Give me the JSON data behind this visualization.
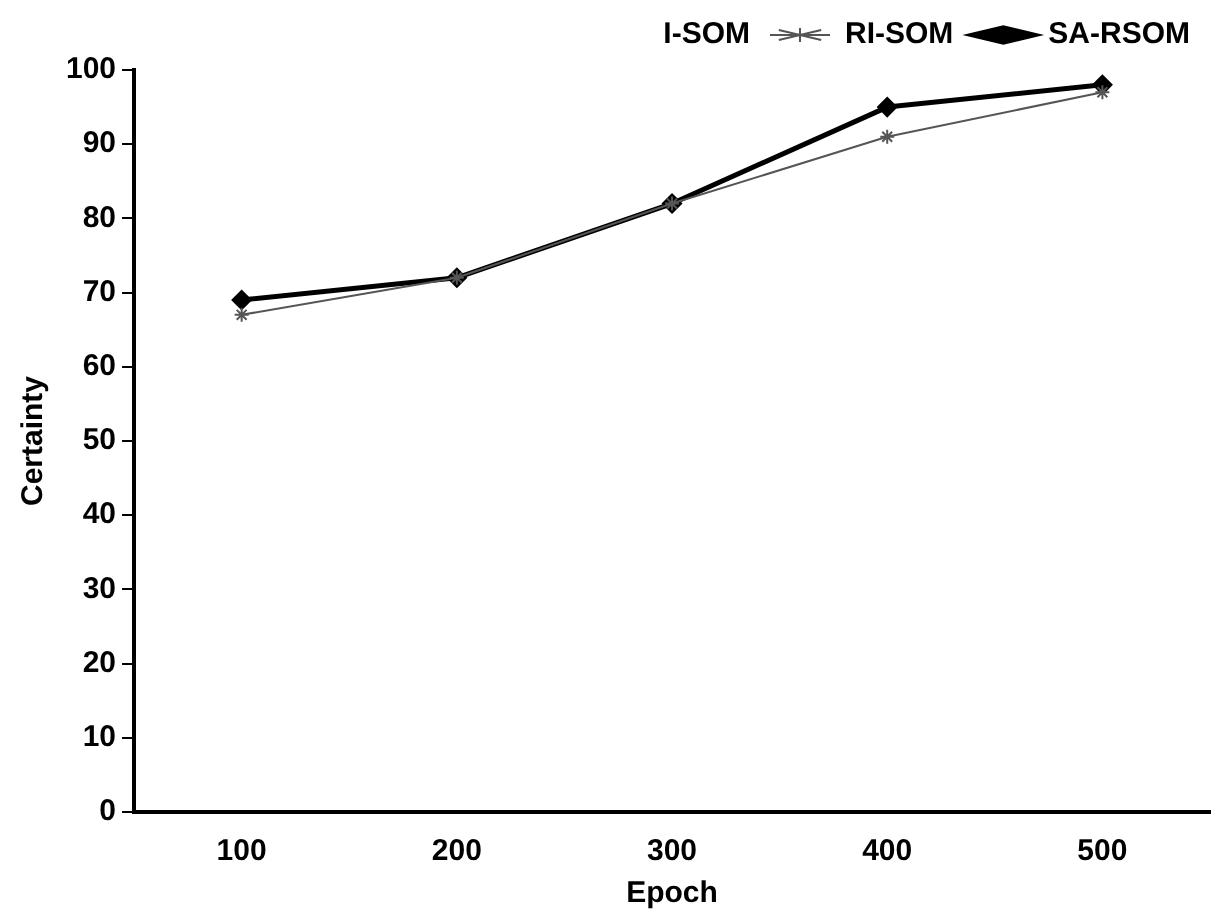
{
  "chart_data": {
    "type": "line",
    "xlabel": "Epoch",
    "ylabel": "Certainty",
    "categories": [
      "100",
      "200",
      "300",
      "400",
      "500"
    ],
    "series": [
      {
        "name": "I-SOM",
        "values": [
          null,
          null,
          null,
          null,
          null
        ],
        "marker": "none"
      },
      {
        "name": "RI-SOM",
        "color": "#555555",
        "values": [
          67,
          72,
          82,
          91,
          97
        ],
        "marker": "cross"
      },
      {
        "name": "SA-RSOM",
        "color": "#000000",
        "values": [
          69,
          72,
          82,
          95,
          98
        ],
        "marker": "diamond"
      }
    ],
    "ylim": [
      0,
      100
    ],
    "yticks": [
      0,
      10,
      20,
      30,
      40,
      50,
      60,
      70,
      80,
      90,
      100
    ],
    "grid": false,
    "legend": "top"
  }
}
